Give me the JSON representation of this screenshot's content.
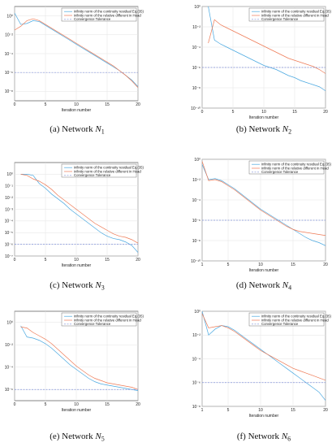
{
  "figure": {
    "xlabel": "Iteration number",
    "legend_labels": [
      "infinity norm of the continuity residual Eq.(35)",
      "infinity norm of the relative different in Head",
      "Convergence Tolerance"
    ],
    "colors": {
      "residual": "#4aa8e0",
      "head": "#ee7a55",
      "tolerance": "#7f8fd8",
      "grid": "#e3e3e3"
    }
  },
  "chart_data": [
    {
      "type": "line",
      "caption": "(a) Network N1",
      "xlim": [
        0,
        20
      ],
      "xticks": [
        0,
        5,
        10,
        15,
        20
      ],
      "ylog": true,
      "ylim_exp": [
        -9,
        1
      ],
      "ytick_exps": [
        -8,
        -6,
        -4,
        -2,
        0
      ],
      "grid": true,
      "legend": "top-right",
      "series": [
        {
          "role": "residual",
          "x": [
            0,
            1,
            2,
            3,
            4,
            5,
            6,
            7,
            8,
            9,
            10,
            11,
            12,
            13,
            14,
            15,
            16,
            17,
            18,
            19,
            20
          ],
          "log10_y": [
            0.3,
            -0.9,
            -0.8,
            -0.5,
            -0.6,
            -1.0,
            -1.4,
            -1.8,
            -2.2,
            -2.6,
            -3.0,
            -3.4,
            -3.8,
            -4.2,
            -4.6,
            -5.0,
            -5.4,
            -5.8,
            -6.3,
            -6.8,
            -7.5
          ]
        },
        {
          "role": "head",
          "x": [
            0,
            1,
            2,
            3,
            4,
            5,
            6,
            7,
            8,
            9,
            10,
            11,
            12,
            13,
            14,
            15,
            16,
            17,
            18,
            19,
            20
          ],
          "log10_y": [
            -1.5,
            -1.1,
            -0.5,
            -0.3,
            -0.5,
            -0.9,
            -1.3,
            -1.7,
            -2.1,
            -2.5,
            -2.9,
            -3.3,
            -3.7,
            -4.1,
            -4.5,
            -4.9,
            -5.3,
            -5.8,
            -6.3,
            -6.9,
            -7.6
          ]
        },
        {
          "role": "tolerance",
          "x": [
            0,
            20
          ],
          "log10_y": [
            -6,
            -6
          ]
        }
      ]
    },
    {
      "type": "line",
      "caption": "(b) Network N2",
      "xlim": [
        0,
        20
      ],
      "xticks": [
        0,
        5,
        10,
        15,
        20
      ],
      "ylog": true,
      "ylim_exp": [
        -10,
        0
      ],
      "ytick_exps": [
        -10,
        -8,
        -6,
        -4,
        -2,
        0
      ],
      "grid": true,
      "legend": "top-right",
      "series": [
        {
          "role": "residual",
          "x": [
            1,
            2,
            3,
            4,
            5,
            6,
            7,
            8,
            9,
            10,
            11,
            12,
            13,
            14,
            15,
            16,
            17,
            18,
            19,
            20
          ],
          "log10_y": [
            0,
            -3.3,
            -3.7,
            -4.0,
            -4.3,
            -4.6,
            -4.9,
            -5.2,
            -5.5,
            -5.8,
            -6.0,
            -6.2,
            -6.5,
            -6.8,
            -7.0,
            -7.3,
            -7.5,
            -7.7,
            -7.9,
            -8.3
          ]
        },
        {
          "role": "head",
          "x": [
            1,
            2,
            3,
            4,
            5,
            6,
            7,
            8,
            9,
            10,
            11,
            12,
            13,
            14,
            15,
            16,
            17,
            18,
            19,
            20
          ],
          "log10_y": [
            -3.6,
            -1.3,
            -1.8,
            -2.1,
            -2.4,
            -2.7,
            -3.0,
            -3.3,
            -3.6,
            -3.9,
            -4.2,
            -4.5,
            -4.8,
            -5.1,
            -5.3,
            -5.5,
            -5.7,
            -5.9,
            -6.2,
            -6.6
          ]
        },
        {
          "role": "tolerance",
          "x": [
            0,
            20
          ],
          "log10_y": [
            -6,
            -6
          ]
        }
      ]
    },
    {
      "type": "line",
      "caption": "(c) Network N3",
      "xlim": [
        0,
        20
      ],
      "xticks": [
        0,
        5,
        10,
        15,
        20
      ],
      "ylog": true,
      "ylim_exp": [
        -7,
        1
      ],
      "ytick_exps": [
        -7,
        -6,
        -5,
        -4,
        -3,
        -2,
        -1,
        0
      ],
      "grid": true,
      "legend": "top-right",
      "series": [
        {
          "role": "residual",
          "x": [
            1,
            2,
            3,
            4,
            5,
            6,
            7,
            8,
            9,
            10,
            11,
            12,
            13,
            14,
            15,
            16,
            17,
            18,
            19,
            20
          ],
          "log10_y": [
            0,
            0,
            -0.1,
            -0.8,
            -1.2,
            -1.7,
            -2.1,
            -2.5,
            -3.0,
            -3.4,
            -3.8,
            -4.2,
            -4.6,
            -5.0,
            -5.3,
            -5.5,
            -5.6,
            -5.8,
            -6.1,
            -6.7
          ]
        },
        {
          "role": "head",
          "x": [
            1,
            2,
            3,
            4,
            5,
            6,
            7,
            8,
            9,
            10,
            11,
            12,
            13,
            14,
            15,
            16,
            17,
            18,
            19,
            20
          ],
          "log10_y": [
            0,
            -0.1,
            -0.4,
            -0.6,
            -0.9,
            -1.3,
            -1.8,
            -2.2,
            -2.6,
            -3.0,
            -3.4,
            -3.8,
            -4.2,
            -4.5,
            -4.8,
            -5.1,
            -5.3,
            -5.4,
            -5.6,
            -5.9
          ]
        },
        {
          "role": "tolerance",
          "x": [
            0,
            20
          ],
          "log10_y": [
            -6,
            -6
          ]
        }
      ]
    },
    {
      "type": "line",
      "caption": "(d) Network N4",
      "xlim": [
        1,
        20
      ],
      "xticks": [
        1,
        5,
        10,
        15,
        20
      ],
      "ylog": true,
      "ylim_exp": [
        -10,
        0
      ],
      "ytick_exps": [
        -10,
        -8,
        -6,
        -4,
        -2,
        0
      ],
      "grid": true,
      "legend": "top-right",
      "series": [
        {
          "role": "residual",
          "x": [
            1,
            2,
            3,
            4,
            5,
            6,
            7,
            8,
            9,
            10,
            11,
            12,
            13,
            14,
            15,
            16,
            17,
            18,
            19,
            20
          ],
          "log10_y": [
            -0.5,
            -2.0,
            -1.9,
            -2.1,
            -2.5,
            -2.9,
            -3.4,
            -3.9,
            -4.4,
            -4.9,
            -5.3,
            -5.7,
            -6.1,
            -6.5,
            -6.9,
            -7.3,
            -7.7,
            -8.0,
            -8.2,
            -8.5
          ]
        },
        {
          "role": "head",
          "x": [
            1,
            2,
            3,
            4,
            5,
            6,
            7,
            8,
            9,
            10,
            11,
            12,
            13,
            14,
            15,
            16,
            17,
            18,
            19,
            20
          ],
          "log10_y": [
            -0.2,
            -2.1,
            -2.0,
            -2.2,
            -2.6,
            -3.0,
            -3.5,
            -4.0,
            -4.5,
            -5.0,
            -5.4,
            -5.8,
            -6.2,
            -6.6,
            -6.9,
            -7.1,
            -7.2,
            -7.3,
            -7.4,
            -7.5
          ]
        },
        {
          "role": "tolerance",
          "x": [
            1,
            20
          ],
          "log10_y": [
            -6,
            -6
          ]
        }
      ]
    },
    {
      "type": "line",
      "caption": "(e) Network N5",
      "xlim": [
        0,
        20
      ],
      "xticks": [
        0,
        5,
        10,
        15,
        20
      ],
      "ylog": true,
      "ylim_exp": [
        -7,
        1
      ],
      "ytick_exps": [
        -6,
        -4,
        -2,
        0
      ],
      "grid": true,
      "legend": "top-right",
      "series": [
        {
          "role": "residual",
          "x": [
            1,
            2,
            3,
            4,
            5,
            6,
            7,
            8,
            9,
            10,
            11,
            12,
            13,
            14,
            15,
            16,
            17,
            18,
            19,
            20
          ],
          "log10_y": [
            -0.3,
            -1.3,
            -1.4,
            -1.6,
            -1.9,
            -2.3,
            -2.8,
            -3.3,
            -3.8,
            -4.2,
            -4.6,
            -5.0,
            -5.3,
            -5.5,
            -5.6,
            -5.7,
            -5.8,
            -5.9,
            -6.0,
            -6.1
          ]
        },
        {
          "role": "head",
          "x": [
            1,
            2,
            3,
            4,
            5,
            6,
            7,
            8,
            9,
            10,
            11,
            12,
            13,
            14,
            15,
            16,
            17,
            18,
            19,
            20
          ],
          "log10_y": [
            -0.4,
            -0.5,
            -0.9,
            -1.2,
            -1.5,
            -1.9,
            -2.4,
            -2.9,
            -3.4,
            -3.9,
            -4.3,
            -4.7,
            -5.0,
            -5.2,
            -5.4,
            -5.5,
            -5.6,
            -5.7,
            -5.8,
            -6.0
          ]
        },
        {
          "role": "tolerance",
          "x": [
            0,
            20
          ],
          "log10_y": [
            -6,
            -6
          ]
        }
      ]
    },
    {
      "type": "line",
      "caption": "(f) Network N6",
      "xlim": [
        1,
        20
      ],
      "xticks": [
        1,
        5,
        10,
        15,
        20
      ],
      "ylog": true,
      "ylim_exp": [
        -8,
        0
      ],
      "ytick_exps": [
        -8,
        -6,
        -4,
        -2,
        0
      ],
      "grid": true,
      "legend": "top-right",
      "series": [
        {
          "role": "residual",
          "x": [
            1,
            2,
            3,
            4,
            5,
            6,
            7,
            8,
            9,
            10,
            11,
            12,
            13,
            14,
            15,
            16,
            17,
            18,
            19,
            20
          ],
          "log10_y": [
            0,
            -2.0,
            -1.5,
            -1.2,
            -1.3,
            -1.6,
            -2.0,
            -2.4,
            -2.8,
            -3.2,
            -3.6,
            -4.0,
            -4.4,
            -4.8,
            -5.2,
            -5.6,
            -6.0,
            -6.4,
            -6.8,
            -7.5
          ]
        },
        {
          "role": "head",
          "x": [
            1,
            2,
            3,
            4,
            5,
            6,
            7,
            8,
            9,
            10,
            11,
            12,
            13,
            14,
            15,
            16,
            17,
            18,
            19,
            20
          ],
          "log10_y": [
            -0.2,
            -1.4,
            -1.3,
            -1.2,
            -1.4,
            -1.7,
            -2.1,
            -2.5,
            -2.9,
            -3.3,
            -3.6,
            -3.9,
            -4.2,
            -4.5,
            -4.8,
            -5.0,
            -5.2,
            -5.4,
            -5.6,
            -5.8
          ]
        },
        {
          "role": "tolerance",
          "x": [
            1,
            20
          ],
          "log10_y": [
            -6,
            -6
          ]
        }
      ]
    }
  ]
}
